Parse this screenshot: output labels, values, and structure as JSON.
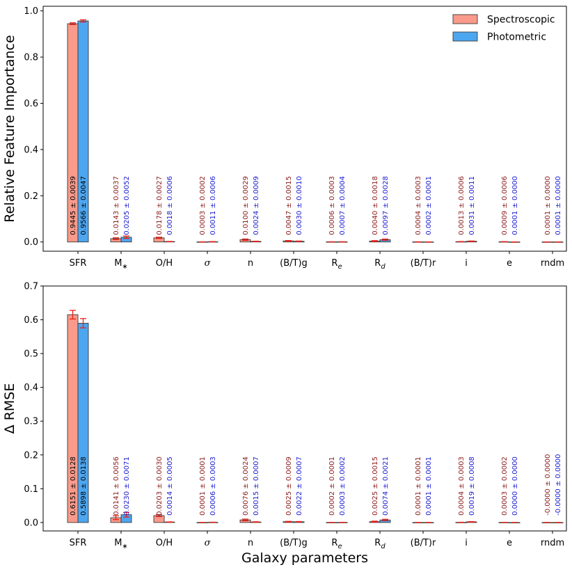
{
  "chart_data": [
    {
      "type": "bar",
      "panel": "top",
      "ylabel": "Relative Feature Importance",
      "xlabel": "",
      "ylim": [
        -0.04,
        1.02
      ],
      "yticks": [
        0.0,
        0.2,
        0.4,
        0.6,
        0.8,
        1.0
      ],
      "ytick_labels": [
        "0.0",
        "0.2",
        "0.4",
        "0.6",
        "0.8",
        "1.0"
      ],
      "categories": [
        "SFR",
        "M*",
        "O/H",
        "σ",
        "n",
        "(B/T)g",
        "Re",
        "Rd",
        "(B/T)r",
        "i",
        "e",
        "rndm"
      ],
      "legend": [
        "Spectroscopic",
        "Photometric"
      ],
      "legend_position": "top-right",
      "series": [
        {
          "name": "Spectroscopic",
          "color": "#fa9a8a",
          "label_color": "#8b1a1a",
          "values": [
            0.9445,
            0.0143,
            0.0178,
            0.0003,
            0.01,
            0.0047,
            0.0006,
            0.004,
            0.0004,
            0.0013,
            0.0009,
            0.0001
          ],
          "errors": [
            0.0039,
            0.0037,
            0.0027,
            0.0002,
            0.0029,
            0.0015,
            0.0003,
            0.0018,
            0.0003,
            0.0006,
            0.0006,
            0.0
          ],
          "value_text": [
            "0.9445",
            "0.0143",
            "0.0178",
            "0.0003",
            "0.0100",
            "0.0047",
            "0.0006",
            "0.0040",
            "0.0004",
            "0.0013",
            "0.0009",
            "0.0001"
          ],
          "error_text": [
            "0.0039",
            "0.0037",
            "0.0027",
            "0.0002",
            "0.0029",
            "0.0015",
            "0.0003",
            "0.0018",
            "0.0003",
            "0.0006",
            "0.0006",
            "0.0000"
          ]
        },
        {
          "name": "Photometric",
          "color": "#4da6f0",
          "label_color": "#1a1ad0",
          "values": [
            0.9566,
            0.0205,
            0.0018,
            0.0011,
            0.0024,
            0.003,
            0.0007,
            0.0097,
            0.0002,
            0.0031,
            0.0001,
            0.0001
          ],
          "errors": [
            0.0047,
            0.0052,
            0.0006,
            0.0006,
            0.0009,
            0.001,
            0.0004,
            0.0028,
            0.0001,
            0.0011,
            0.0,
            0.0
          ],
          "value_text": [
            "0.9566",
            "0.0205",
            "0.0018",
            "0.0011",
            "0.0024",
            "0.0030",
            "0.0007",
            "0.0097",
            "0.0002",
            "0.0031",
            "0.0001",
            "0.0001"
          ],
          "error_text": [
            "0.0047",
            "0.0052",
            "0.0006",
            "0.0006",
            "0.0009",
            "0.0010",
            "0.0004",
            "0.0028",
            "0.0001",
            "0.0011",
            "0.0000",
            "0.0000"
          ]
        }
      ]
    },
    {
      "type": "bar",
      "panel": "bottom",
      "ylabel": "Δ RMSE",
      "xlabel": "Galaxy parameters",
      "ylim": [
        -0.025,
        0.7
      ],
      "yticks": [
        0.0,
        0.1,
        0.2,
        0.3,
        0.4,
        0.5,
        0.6,
        0.7
      ],
      "ytick_labels": [
        "0.0",
        "0.1",
        "0.2",
        "0.3",
        "0.4",
        "0.5",
        "0.6",
        "0.7"
      ],
      "categories": [
        "SFR",
        "M*",
        "O/H",
        "σ",
        "n",
        "(B/T)g",
        "Re",
        "Rd",
        "(B/T)r",
        "i",
        "e",
        "rndm"
      ],
      "series": [
        {
          "name": "Spectroscopic",
          "color": "#fa9a8a",
          "label_color": "#8b1a1a",
          "values": [
            0.6151,
            0.0141,
            0.0203,
            0.0001,
            0.0076,
            0.0025,
            0.0002,
            0.0025,
            0.0001,
            0.0004,
            0.0003,
            -0.0
          ],
          "errors": [
            0.0128,
            0.0056,
            0.003,
            0.0001,
            0.0024,
            0.0009,
            0.0001,
            0.0015,
            0.0001,
            0.0003,
            0.0002,
            0.0
          ],
          "value_text": [
            "0.6151",
            "0.0141",
            "0.0203",
            "0.0001",
            "0.0076",
            "0.0025",
            "0.0002",
            "0.0025",
            "0.0001",
            "0.0004",
            "0.0003",
            "-0.0000"
          ],
          "error_text": [
            "0.0128",
            "0.0056",
            "0.0030",
            "0.0001",
            "0.0024",
            "0.0009",
            "0.0001",
            "0.0015",
            "0.0001",
            "0.0003",
            "0.0002",
            "0.0000"
          ]
        },
        {
          "name": "Photometric",
          "color": "#4da6f0",
          "label_color": "#1a1ad0",
          "values": [
            0.5898,
            0.023,
            0.0014,
            0.0006,
            0.0015,
            0.0022,
            0.0003,
            0.0074,
            0.0001,
            0.0019,
            0.0,
            -0.0
          ],
          "errors": [
            0.0138,
            0.0071,
            0.0005,
            0.0003,
            0.0007,
            0.0007,
            0.0002,
            0.0021,
            0.0001,
            0.0008,
            0.0,
            0.0
          ],
          "value_text": [
            "0.5898",
            "0.0230",
            "0.0014",
            "0.0006",
            "0.0015",
            "0.0022",
            "0.0003",
            "0.0074",
            "0.0001",
            "0.0019",
            "0.0000",
            "-0.0000"
          ],
          "error_text": [
            "0.0138",
            "0.0071",
            "0.0005",
            "0.0003",
            "0.0007",
            "0.0007",
            "0.0002",
            "0.0021",
            "0.0001",
            "0.0008",
            "0.0000",
            "0.0000"
          ]
        }
      ]
    }
  ]
}
